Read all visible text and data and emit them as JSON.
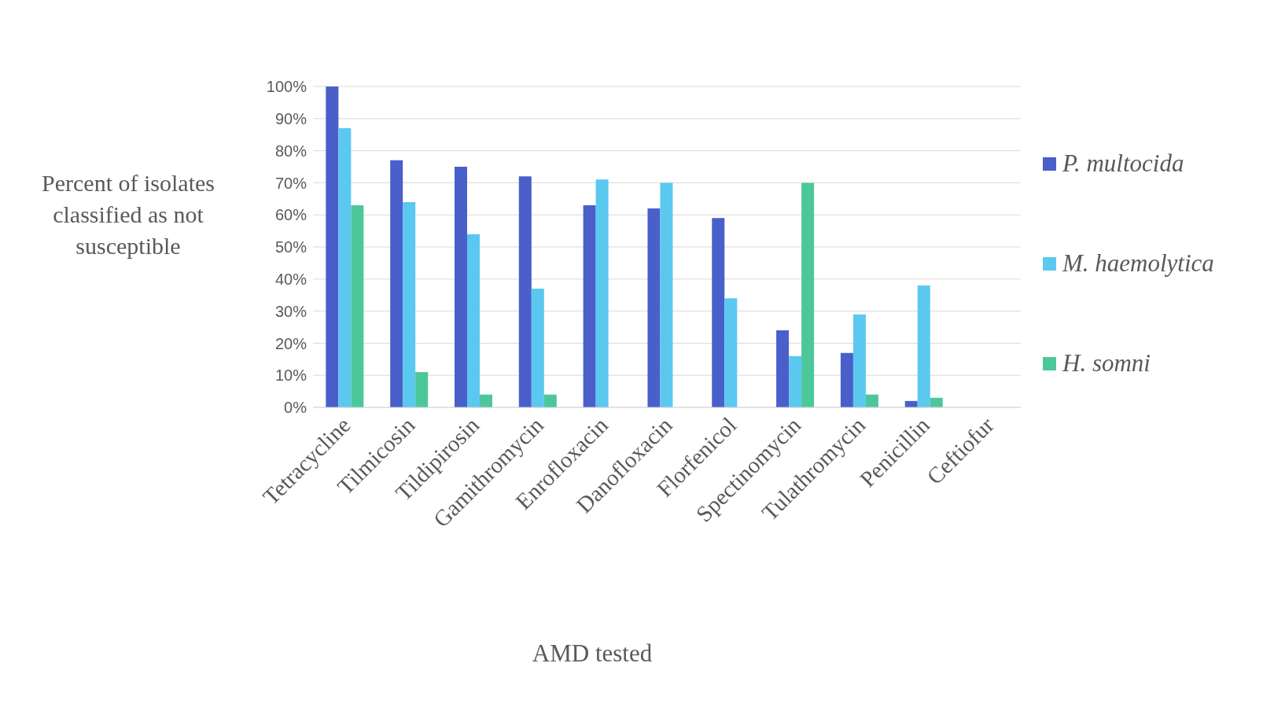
{
  "chart_data": {
    "type": "bar",
    "xlabel": "AMD tested",
    "ylabel": "Percent of isolates classified as not susceptible",
    "categories": [
      "Tetracycline",
      "Tilmicosin",
      "Tildipirosin",
      "Gamithromycin",
      "Enrofloxacin",
      "Danofloxacin",
      "Florfenicol",
      "Spectinomycin",
      "Tulathromycin",
      "Penicillin",
      "Ceftiofur"
    ],
    "series": [
      {
        "name": "P. multocida",
        "color": "#4a5fc9",
        "values": [
          100,
          77,
          75,
          72,
          63,
          62,
          59,
          24,
          17,
          2,
          0
        ]
      },
      {
        "name": "M. haemolytica",
        "color": "#5bc8f0",
        "values": [
          87,
          64,
          54,
          37,
          71,
          70,
          34,
          16,
          29,
          38,
          0
        ]
      },
      {
        "name": "H. somni",
        "color": "#4cc79a",
        "values": [
          63,
          11,
          4,
          4,
          0,
          0,
          0,
          70,
          4,
          3,
          0
        ]
      }
    ],
    "ylim": [
      0,
      100
    ],
    "yticks": [
      {
        "value": 0,
        "label": "0%"
      },
      {
        "value": 10,
        "label": "10%"
      },
      {
        "value": 20,
        "label": "20%"
      },
      {
        "value": 30,
        "label": "30%"
      },
      {
        "value": 40,
        "label": "40%"
      },
      {
        "value": 50,
        "label": "50%"
      },
      {
        "value": 60,
        "label": "60%"
      },
      {
        "value": 70,
        "label": "70%"
      },
      {
        "value": 80,
        "label": "80%"
      },
      {
        "value": 90,
        "label": "90%"
      },
      {
        "value": 100,
        "label": "100%"
      }
    ],
    "grid": "y",
    "legend": "right"
  }
}
